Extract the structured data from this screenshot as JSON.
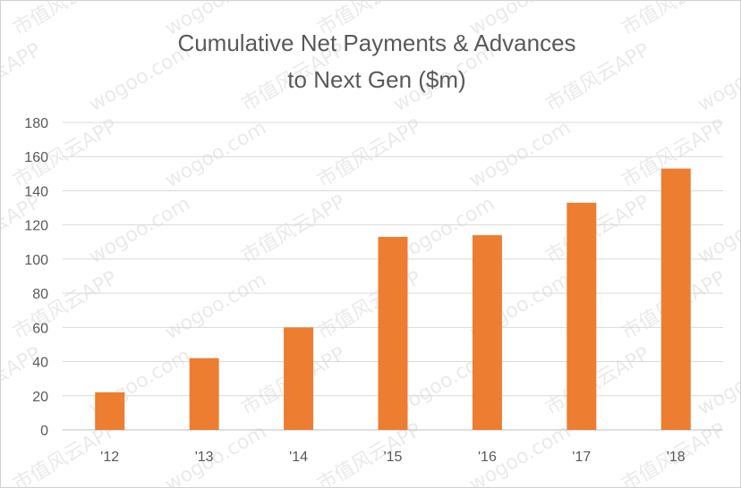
{
  "chart_data": {
    "type": "bar",
    "title_line1": "Cumulative Net Payments & Advances",
    "title_line2": "to Next Gen ($m)",
    "categories": [
      "'12",
      "'13",
      "'14",
      "'15",
      "'16",
      "'17",
      "'18"
    ],
    "values": [
      22,
      42,
      60,
      113,
      114,
      133,
      153
    ],
    "ylim": [
      0,
      180
    ],
    "yticks": [
      0,
      20,
      40,
      60,
      80,
      100,
      120,
      140,
      160,
      180
    ],
    "grid": true,
    "bar_color": "#ED7D31",
    "xlabel": "",
    "ylabel": ""
  },
  "watermark": {
    "text_cn": "市值风云APP",
    "text_url": "wogoo.com"
  }
}
